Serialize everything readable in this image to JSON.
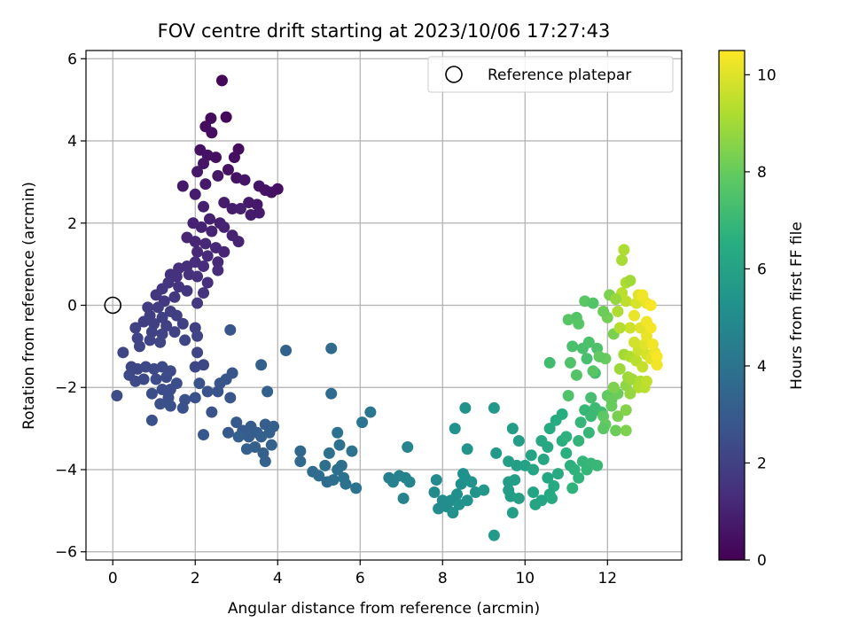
{
  "chart_data": {
    "type": "scatter",
    "title": "FOV centre drift starting at 2023/10/06 17:27:43",
    "xlabel": "Angular distance from reference (arcmin)",
    "ylabel": "Rotation from reference (arcmin)",
    "xlim": [
      -0.65,
      13.8
    ],
    "ylim": [
      -6.2,
      6.2
    ],
    "xticks": [
      0,
      2,
      4,
      6,
      8,
      10,
      12
    ],
    "yticks": [
      -6,
      -4,
      -2,
      0,
      2,
      4,
      6
    ],
    "xtick_labels": [
      "0",
      "2",
      "4",
      "6",
      "8",
      "10",
      "12"
    ],
    "ytick_labels": [
      "−6",
      "−4",
      "−2",
      "0",
      "2",
      "4",
      "6"
    ],
    "grid": true,
    "legend": {
      "location": "upper right",
      "entries": [
        "Reference platepar"
      ]
    },
    "reference_point": {
      "x": 0,
      "y": 0
    },
    "colorbar": {
      "label": "Hours from first FF file",
      "range": [
        0,
        10.5
      ],
      "ticks": [
        0,
        2,
        4,
        6,
        8,
        10
      ],
      "tick_labels": [
        "0",
        "2",
        "4",
        "6",
        "8",
        "10"
      ],
      "colormap": "viridis"
    },
    "points": [
      [
        2.65,
        5.47,
        0.2
      ],
      [
        2.38,
        4.55,
        0.3
      ],
      [
        2.75,
        4.58,
        0.25
      ],
      [
        2.25,
        4.35,
        0.35
      ],
      [
        2.4,
        4.2,
        0.4
      ],
      [
        2.12,
        3.78,
        0.5
      ],
      [
        2.3,
        3.65,
        0.55
      ],
      [
        2.5,
        3.6,
        0.45
      ],
      [
        3.05,
        3.8,
        0.35
      ],
      [
        2.95,
        3.6,
        0.4
      ],
      [
        2.2,
        3.45,
        0.6
      ],
      [
        2.05,
        3.25,
        0.7
      ],
      [
        2.8,
        3.3,
        0.5
      ],
      [
        3.0,
        3.1,
        0.55
      ],
      [
        3.2,
        3.05,
        0.6
      ],
      [
        2.55,
        3.15,
        0.65
      ],
      [
        1.7,
        2.9,
        0.75
      ],
      [
        2.25,
        2.95,
        0.7
      ],
      [
        3.55,
        2.9,
        0.6
      ],
      [
        3.7,
        2.8,
        0.55
      ],
      [
        3.85,
        2.75,
        0.5
      ],
      [
        4.0,
        2.83,
        0.45
      ],
      [
        2.0,
        2.7,
        0.8
      ],
      [
        3.3,
        2.5,
        0.75
      ],
      [
        3.5,
        2.45,
        0.7
      ],
      [
        3.35,
        2.2,
        0.8
      ],
      [
        3.55,
        2.25,
        0.75
      ],
      [
        2.7,
        2.5,
        0.8
      ],
      [
        2.9,
        2.35,
        0.85
      ],
      [
        3.1,
        2.35,
        0.9
      ],
      [
        2.2,
        2.4,
        0.9
      ],
      [
        2.35,
        2.1,
        0.95
      ],
      [
        2.6,
        2.0,
        0.95
      ],
      [
        1.95,
        2.0,
        1.0
      ],
      [
        2.15,
        1.9,
        1.0
      ],
      [
        2.4,
        1.8,
        1.05
      ],
      [
        2.7,
        1.9,
        1.0
      ],
      [
        2.9,
        1.7,
        1.0
      ],
      [
        3.05,
        1.55,
        1.05
      ],
      [
        1.8,
        1.65,
        1.1
      ],
      [
        2.0,
        1.55,
        1.1
      ],
      [
        2.25,
        1.5,
        1.15
      ],
      [
        2.5,
        1.4,
        1.15
      ],
      [
        2.7,
        1.3,
        1.1
      ],
      [
        2.05,
        1.3,
        1.2
      ],
      [
        2.3,
        1.2,
        1.25
      ],
      [
        2.55,
        1.05,
        1.25
      ],
      [
        2.0,
        1.05,
        1.3
      ],
      [
        2.2,
        0.95,
        1.3
      ],
      [
        1.8,
        0.95,
        1.35
      ],
      [
        1.6,
        0.9,
        1.4
      ],
      [
        1.85,
        0.75,
        1.45
      ],
      [
        2.05,
        0.7,
        1.45
      ],
      [
        2.3,
        0.55,
        1.4
      ],
      [
        2.55,
        0.85,
        1.3
      ],
      [
        1.55,
        0.7,
        1.45
      ],
      [
        1.4,
        0.75,
        1.5
      ],
      [
        1.35,
        0.55,
        1.55
      ],
      [
        1.6,
        0.45,
        1.55
      ],
      [
        1.8,
        0.35,
        1.6
      ],
      [
        2.2,
        0.3,
        1.55
      ],
      [
        1.2,
        0.4,
        1.65
      ],
      [
        1.05,
        0.25,
        1.7
      ],
      [
        1.25,
        0.1,
        1.75
      ],
      [
        1.5,
        0.2,
        1.7
      ],
      [
        2.05,
        0.05,
        1.7
      ],
      [
        0.85,
        -0.05,
        1.85
      ],
      [
        1.1,
        -0.05,
        1.85
      ],
      [
        1.4,
        -0.15,
        1.9
      ],
      [
        0.9,
        -0.25,
        1.9
      ],
      [
        1.2,
        -0.3,
        1.95
      ],
      [
        1.55,
        -0.25,
        1.9
      ],
      [
        0.75,
        -0.4,
        1.95
      ],
      [
        1.0,
        -0.45,
        2.0
      ],
      [
        1.3,
        -0.5,
        2.0
      ],
      [
        1.7,
        -0.45,
        2.0
      ],
      [
        2.0,
        -0.55,
        2.0
      ],
      [
        0.55,
        -0.55,
        2.05
      ],
      [
        0.95,
        -0.65,
        2.05
      ],
      [
        1.2,
        -0.7,
        2.1
      ],
      [
        1.5,
        -0.65,
        2.05
      ],
      [
        0.6,
        -0.8,
        2.1
      ],
      [
        0.9,
        -0.85,
        2.1
      ],
      [
        1.15,
        -0.9,
        2.15
      ],
      [
        1.75,
        -0.85,
        2.15
      ],
      [
        2.05,
        -0.75,
        2.15
      ],
      [
        0.25,
        -1.15,
        2.15
      ],
      [
        0.65,
        -1.0,
        2.15
      ],
      [
        2.05,
        -1.15,
        2.2
      ],
      [
        2.2,
        -1.45,
        2.25
      ],
      [
        2.0,
        -1.5,
        2.25
      ],
      [
        0.45,
        -1.5,
        2.2
      ],
      [
        0.6,
        -1.55,
        2.25
      ],
      [
        0.8,
        -1.5,
        2.3
      ],
      [
        1.0,
        -1.55,
        2.3
      ],
      [
        1.2,
        -1.5,
        2.3
      ],
      [
        1.4,
        -1.6,
        2.35
      ],
      [
        0.4,
        -1.7,
        2.3
      ],
      [
        0.55,
        -1.85,
        2.35
      ],
      [
        0.75,
        -1.8,
        2.35
      ],
      [
        1.05,
        -1.8,
        2.4
      ],
      [
        1.3,
        -1.75,
        2.4
      ],
      [
        1.55,
        -1.9,
        2.45
      ],
      [
        1.2,
        -2.05,
        2.45
      ],
      [
        1.4,
        -2.05,
        2.5
      ],
      [
        0.1,
        -2.2,
        2.4
      ],
      [
        0.95,
        -2.15,
        2.5
      ],
      [
        1.35,
        -2.25,
        2.5
      ],
      [
        1.75,
        -2.3,
        2.55
      ],
      [
        1.15,
        -2.4,
        2.55
      ],
      [
        1.4,
        -2.45,
        2.6
      ],
      [
        1.7,
        -2.5,
        2.6
      ],
      [
        2.0,
        -2.25,
        2.6
      ],
      [
        2.3,
        -2.1,
        2.65
      ],
      [
        2.55,
        -2.1,
        2.7
      ],
      [
        2.85,
        -2.25,
        2.75
      ],
      [
        2.1,
        -1.9,
        2.65
      ],
      [
        2.6,
        -1.9,
        2.75
      ],
      [
        2.75,
        -1.8,
        2.8
      ],
      [
        2.9,
        -1.65,
        2.8
      ],
      [
        0.95,
        -2.8,
        2.6
      ],
      [
        2.4,
        -2.6,
        2.7
      ],
      [
        2.85,
        -0.6,
        2.8
      ],
      [
        2.2,
        -3.15,
        2.85
      ],
      [
        2.8,
        -3.1,
        2.9
      ],
      [
        3.0,
        -2.85,
        2.95
      ],
      [
        3.15,
        -3.05,
        3.0
      ],
      [
        3.35,
        -2.95,
        3.05
      ],
      [
        3.5,
        -3.1,
        3.1
      ],
      [
        3.7,
        -2.9,
        3.1
      ],
      [
        3.9,
        -2.95,
        3.15
      ],
      [
        3.3,
        -3.2,
        3.1
      ],
      [
        3.6,
        -3.2,
        3.15
      ],
      [
        3.8,
        -3.1,
        3.2
      ],
      [
        3.45,
        -3.45,
        3.2
      ],
      [
        3.25,
        -3.5,
        3.2
      ],
      [
        3.05,
        -3.2,
        3.15
      ],
      [
        3.65,
        -3.6,
        3.25
      ],
      [
        3.7,
        -3.8,
        3.3
      ],
      [
        3.85,
        -3.4,
        3.3
      ],
      [
        3.6,
        -1.45,
        3.2
      ],
      [
        3.75,
        -2.1,
        3.25
      ],
      [
        4.2,
        -1.1,
        3.3
      ],
      [
        5.3,
        -1.05,
        3.6
      ],
      [
        5.3,
        -2.15,
        3.7
      ],
      [
        4.55,
        -3.55,
        3.5
      ],
      [
        4.55,
        -3.8,
        3.55
      ],
      [
        4.85,
        -4.05,
        3.65
      ],
      [
        5.0,
        -4.15,
        3.7
      ],
      [
        5.2,
        -4.3,
        3.75
      ],
      [
        5.35,
        -4.25,
        3.8
      ],
      [
        5.15,
        -3.9,
        3.8
      ],
      [
        5.45,
        -4.0,
        3.85
      ],
      [
        5.55,
        -3.9,
        3.85
      ],
      [
        5.6,
        -4.2,
        3.9
      ],
      [
        5.65,
        -4.35,
        3.95
      ],
      [
        5.9,
        -4.45,
        4.0
      ],
      [
        5.25,
        -3.6,
        3.9
      ],
      [
        5.5,
        -3.4,
        3.9
      ],
      [
        5.45,
        -3.1,
        3.95
      ],
      [
        5.8,
        -3.55,
        4.0
      ],
      [
        6.05,
        -2.85,
        4.1
      ],
      [
        6.25,
        -2.6,
        4.15
      ],
      [
        6.7,
        -4.2,
        4.5
      ],
      [
        6.8,
        -4.3,
        4.55
      ],
      [
        6.95,
        -4.15,
        4.6
      ],
      [
        7.05,
        -4.7,
        4.65
      ],
      [
        7.1,
        -4.2,
        4.65
      ],
      [
        7.2,
        -4.3,
        4.7
      ],
      [
        7.15,
        -3.45,
        4.7
      ],
      [
        7.85,
        -4.25,
        4.95
      ],
      [
        7.8,
        -4.55,
        5.0
      ],
      [
        8.0,
        -4.75,
        5.05
      ],
      [
        8.1,
        -4.9,
        5.1
      ],
      [
        7.9,
        -4.95,
        5.05
      ],
      [
        8.2,
        -4.75,
        5.15
      ],
      [
        8.35,
        -4.6,
        5.2
      ],
      [
        8.45,
        -4.35,
        5.2
      ],
      [
        8.55,
        -4.2,
        5.25
      ],
      [
        8.7,
        -4.3,
        5.3
      ],
      [
        8.8,
        -4.55,
        5.35
      ],
      [
        8.6,
        -4.75,
        5.3
      ],
      [
        8.4,
        -4.85,
        5.3
      ],
      [
        8.25,
        -5.05,
        5.25
      ],
      [
        8.5,
        -4.1,
        5.25
      ],
      [
        8.3,
        -3.0,
        5.3
      ],
      [
        8.55,
        -2.5,
        5.35
      ],
      [
        8.6,
        -3.5,
        5.4
      ],
      [
        9.0,
        -4.5,
        5.55
      ],
      [
        9.25,
        -5.6,
        5.6
      ],
      [
        9.3,
        -3.6,
        5.6
      ],
      [
        9.25,
        -2.5,
        5.65
      ],
      [
        9.6,
        -4.3,
        5.75
      ],
      [
        9.6,
        -4.5,
        5.75
      ],
      [
        9.65,
        -4.65,
        5.8
      ],
      [
        9.75,
        -4.25,
        5.85
      ],
      [
        9.7,
        -3.0,
        5.8
      ],
      [
        9.85,
        -3.3,
        5.85
      ],
      [
        9.6,
        -3.8,
        5.85
      ],
      [
        9.8,
        -3.9,
        5.9
      ],
      [
        9.7,
        -5.05,
        5.85
      ],
      [
        9.85,
        -4.7,
        5.9
      ],
      [
        10.0,
        -3.9,
        6.0
      ],
      [
        10.15,
        -3.65,
        6.05
      ],
      [
        10.2,
        -4.55,
        6.05
      ],
      [
        10.25,
        -4.85,
        6.1
      ],
      [
        10.4,
        -4.75,
        6.15
      ],
      [
        10.2,
        -4.0,
        6.1
      ],
      [
        10.45,
        -3.75,
        6.2
      ],
      [
        10.55,
        -4.2,
        6.25
      ],
      [
        10.6,
        -4.6,
        6.3
      ],
      [
        10.7,
        -4.4,
        6.35
      ],
      [
        10.8,
        -4.1,
        6.4
      ],
      [
        10.65,
        -4.7,
        6.35
      ],
      [
        10.55,
        -3.45,
        6.3
      ],
      [
        10.4,
        -3.3,
        6.3
      ],
      [
        10.6,
        -3.0,
        6.4
      ],
      [
        10.75,
        -2.8,
        6.45
      ],
      [
        10.9,
        -2.65,
        6.5
      ],
      [
        10.9,
        -3.3,
        6.55
      ],
      [
        11.0,
        -3.6,
        6.6
      ],
      [
        11.1,
        -3.9,
        6.65
      ],
      [
        11.2,
        -4.0,
        6.7
      ],
      [
        11.3,
        -4.2,
        6.75
      ],
      [
        11.15,
        -4.45,
        6.75
      ],
      [
        11.4,
        -3.8,
        6.85
      ],
      [
        11.5,
        -4.0,
        6.9
      ],
      [
        11.6,
        -3.85,
        6.95
      ],
      [
        11.75,
        -3.9,
        7.0
      ],
      [
        11.0,
        -3.2,
        6.7
      ],
      [
        11.3,
        -3.3,
        6.85
      ],
      [
        11.55,
        -3.1,
        6.95
      ],
      [
        11.35,
        -2.85,
        6.9
      ],
      [
        11.45,
        -2.55,
        6.95
      ],
      [
        11.6,
        -2.7,
        7.05
      ],
      [
        11.7,
        -2.5,
        7.1
      ],
      [
        11.85,
        -2.6,
        7.15
      ],
      [
        11.7,
        -1.65,
        7.3
      ],
      [
        11.5,
        -1.3,
        7.35
      ],
      [
        11.4,
        -1.05,
        7.4
      ],
      [
        11.55,
        -0.9,
        7.45
      ],
      [
        11.75,
        -1.05,
        7.5
      ],
      [
        10.6,
        -1.4,
        7.2
      ],
      [
        11.15,
        -1.0,
        7.4
      ],
      [
        11.25,
        -0.3,
        7.6
      ],
      [
        11.05,
        -0.35,
        7.7
      ],
      [
        11.45,
        0.1,
        7.8
      ],
      [
        12.0,
        -0.3,
        8.2
      ],
      [
        12.15,
        -0.7,
        8.35
      ],
      [
        12.05,
        0.25,
        8.4
      ],
      [
        11.95,
        -1.3,
        8.0
      ],
      [
        11.8,
        -1.25,
        7.9
      ],
      [
        11.25,
        -1.7,
        7.6
      ],
      [
        11.1,
        -1.4,
        7.55
      ],
      [
        11.05,
        -2.2,
        7.5
      ],
      [
        11.65,
        -1.6,
        7.7
      ],
      [
        12.0,
        -2.2,
        7.9
      ],
      [
        12.1,
        -2.3,
        8.0
      ],
      [
        12.25,
        -2.15,
        8.1
      ],
      [
        11.9,
        -2.7,
        7.85
      ],
      [
        12.1,
        -2.45,
        8.0
      ],
      [
        11.95,
        -2.9,
        7.95
      ],
      [
        11.9,
        -3.0,
        7.8
      ],
      [
        12.2,
        -3.05,
        8.1
      ],
      [
        12.45,
        -3.05,
        8.4
      ],
      [
        12.25,
        -2.7,
        8.3
      ],
      [
        12.45,
        -2.55,
        8.5
      ],
      [
        12.15,
        -2.0,
        8.4
      ],
      [
        12.45,
        -1.95,
        8.7
      ],
      [
        12.5,
        -1.75,
        8.9
      ],
      [
        12.6,
        -1.8,
        9.0
      ],
      [
        12.8,
        -1.85,
        9.2
      ],
      [
        12.75,
        -2.0,
        9.25
      ],
      [
        12.9,
        -2.0,
        9.4
      ],
      [
        12.95,
        -1.85,
        9.5
      ],
      [
        12.55,
        -2.15,
        8.8
      ],
      [
        12.3,
        -1.55,
        8.9
      ],
      [
        12.4,
        -1.2,
        9.0
      ],
      [
        12.55,
        -1.25,
        9.2
      ],
      [
        12.7,
        -1.35,
        9.4
      ],
      [
        12.85,
        -1.5,
        9.6
      ],
      [
        12.75,
        -1.1,
        9.7
      ],
      [
        12.95,
        -1.2,
        9.85
      ],
      [
        13.05,
        -1.3,
        10.0
      ],
      [
        13.15,
        -1.15,
        10.2
      ],
      [
        12.9,
        -0.95,
        10.0
      ],
      [
        12.95,
        -0.75,
        10.15
      ],
      [
        13.1,
        -0.95,
        10.3
      ],
      [
        13.2,
        -1.25,
        10.4
      ],
      [
        12.65,
        -0.9,
        9.8
      ],
      [
        12.55,
        -0.55,
        9.7
      ],
      [
        12.8,
        -0.55,
        10.0
      ],
      [
        12.65,
        -0.25,
        10.2
      ],
      [
        12.95,
        -0.4,
        10.3
      ],
      [
        13.05,
        -0.55,
        10.35
      ],
      [
        12.3,
        -0.55,
        9.3
      ],
      [
        12.25,
        -0.15,
        9.2
      ],
      [
        12.45,
        0.1,
        9.5
      ],
      [
        12.7,
        0.05,
        9.9
      ],
      [
        12.75,
        0.25,
        10.0
      ],
      [
        12.85,
        0.2,
        10.1
      ],
      [
        12.95,
        0.05,
        10.2
      ],
      [
        12.35,
        0.3,
        9.4
      ],
      [
        12.45,
        0.55,
        9.2
      ],
      [
        12.55,
        0.6,
        9.0
      ],
      [
        12.35,
        1.1,
        9.1
      ],
      [
        12.4,
        1.35,
        9.2
      ],
      [
        12.85,
        0.25,
        10.3
      ],
      [
        13.05,
        0.0,
        10.4
      ],
      [
        13.2,
        -1.45,
        10.3
      ],
      [
        11.65,
        0.05,
        7.6
      ],
      [
        12.2,
        0.15,
        8.8
      ],
      [
        11.3,
        -0.45,
        7.7
      ],
      [
        11.9,
        -0.15,
        8.1
      ],
      [
        11.6,
        -2.25,
        7.3
      ]
    ]
  }
}
